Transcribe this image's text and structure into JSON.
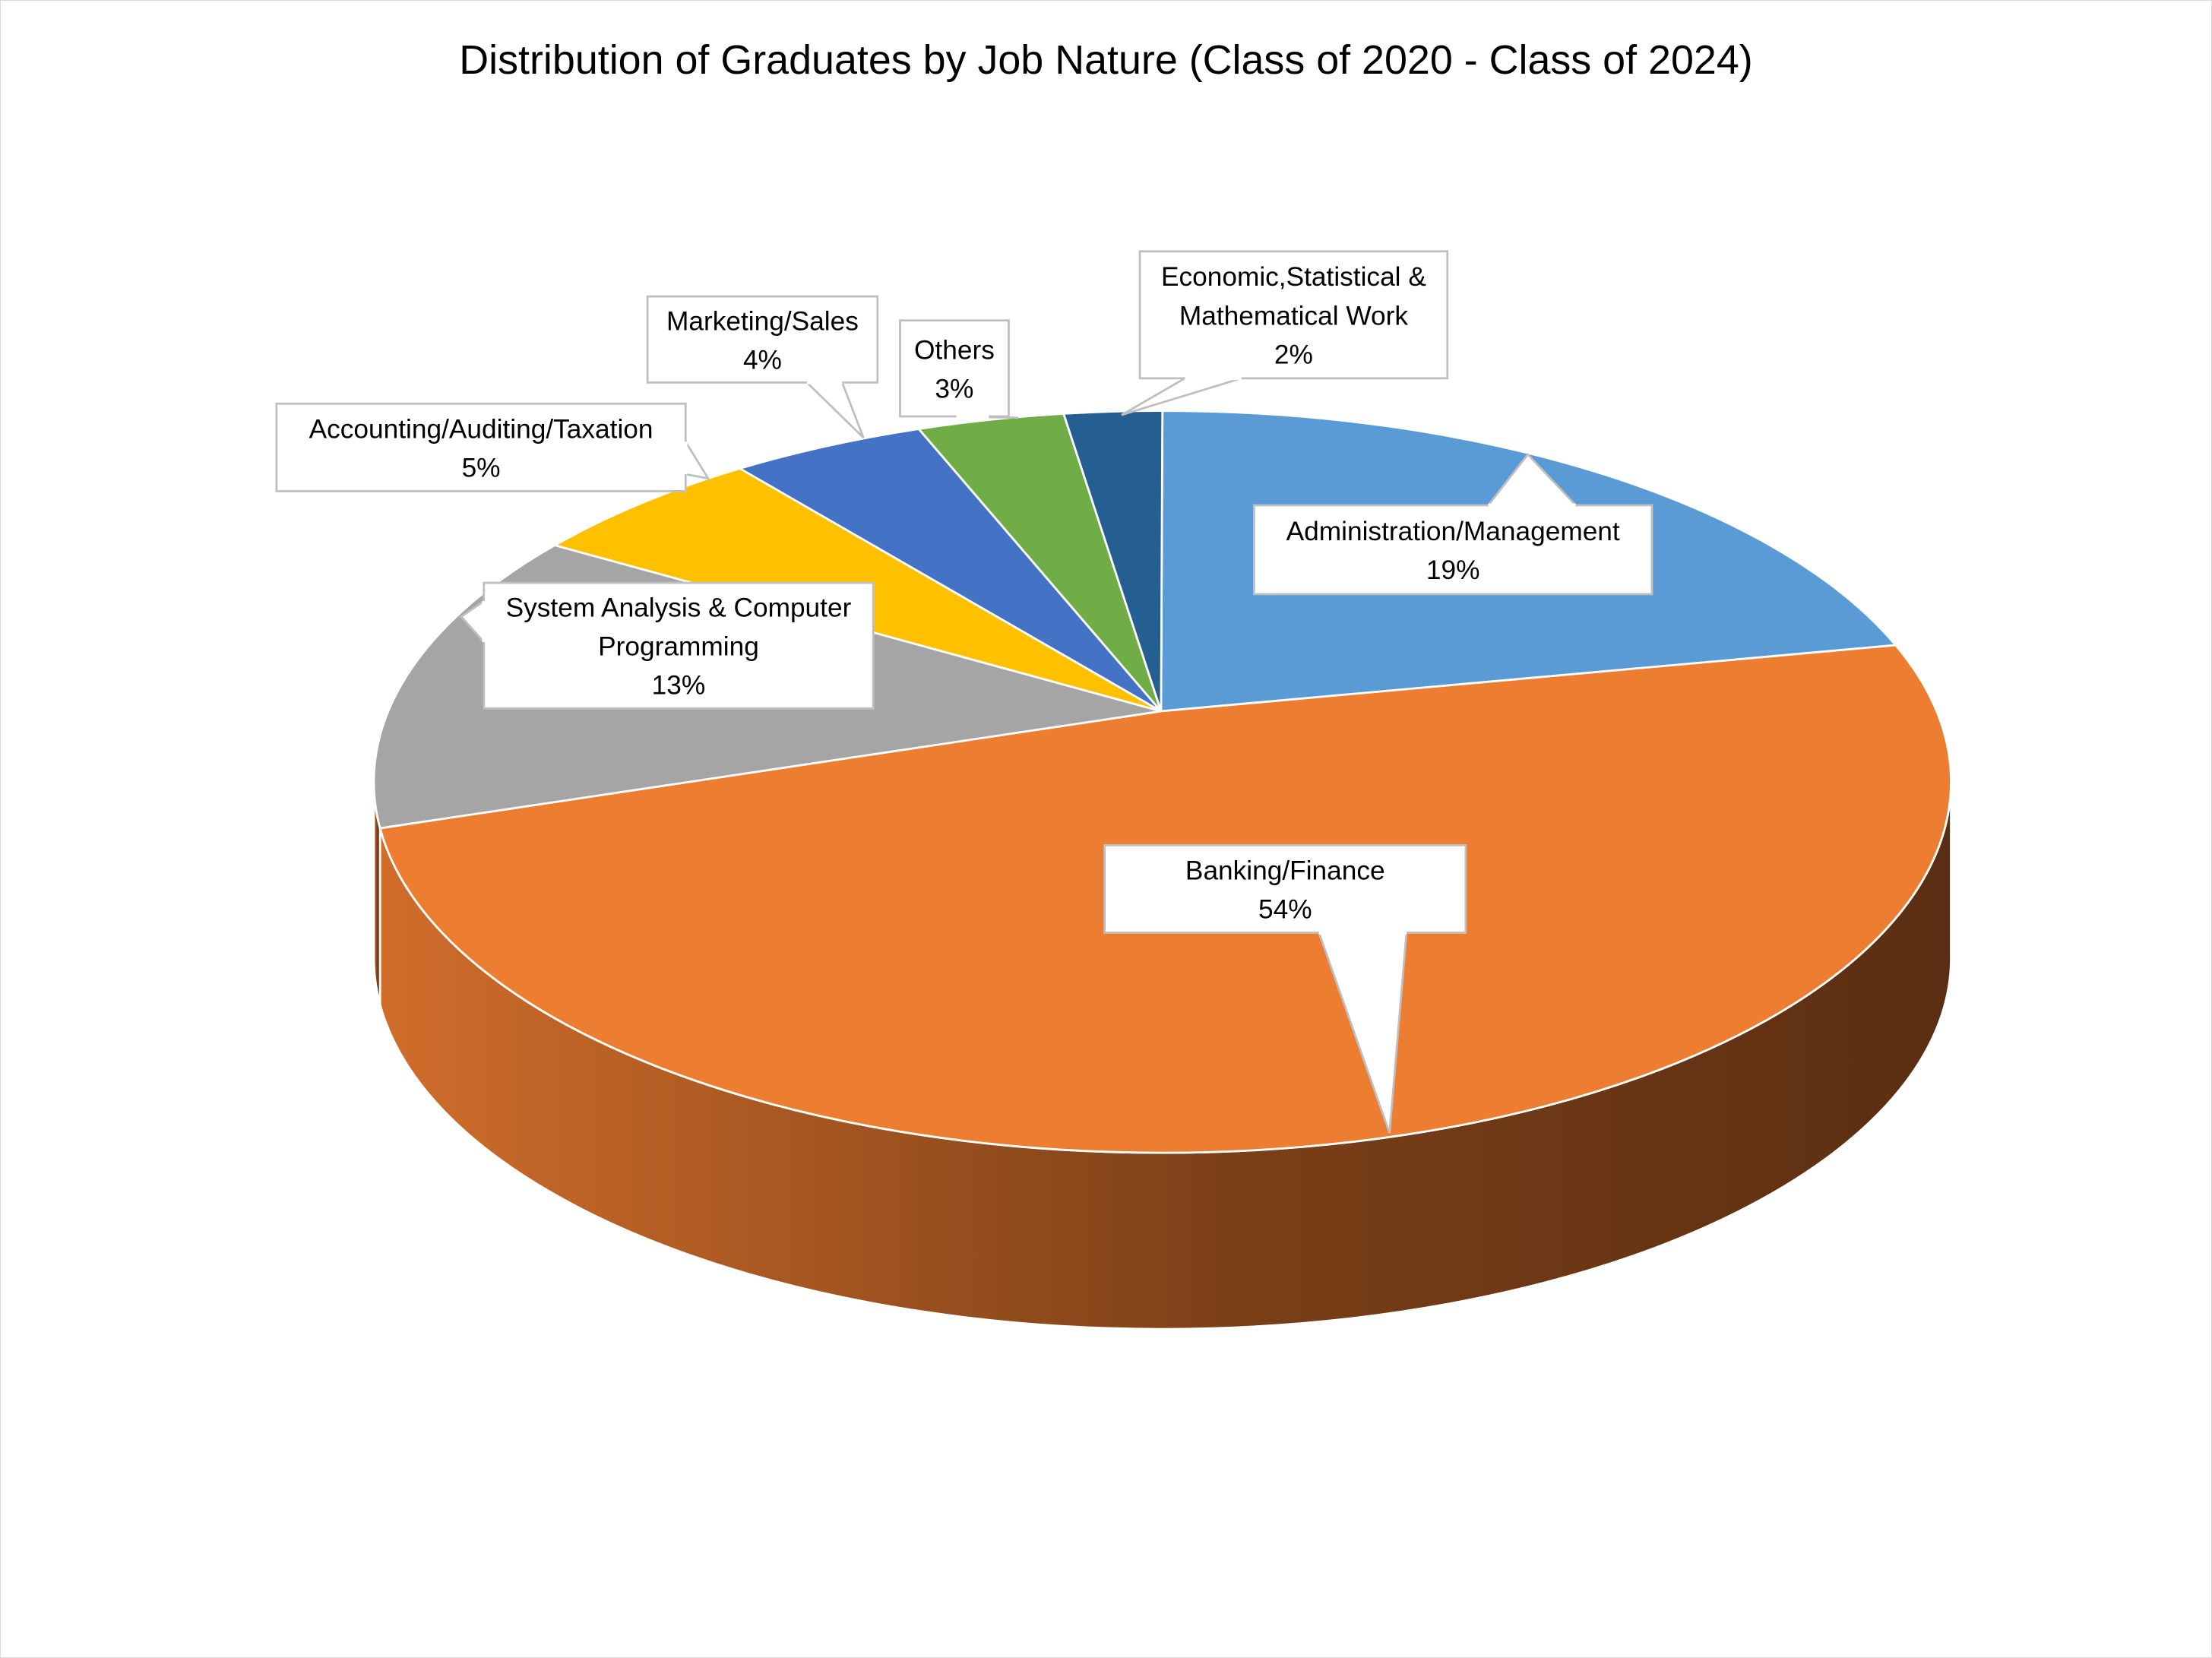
{
  "chart_data": {
    "type": "pie",
    "style": "3d",
    "title": "Distribution of Graduates by Job Nature (Class of 2020 - Class of 2024)",
    "legend": "none",
    "slices": [
      {
        "label": "Administration/Management",
        "value": 19,
        "display": "19%",
        "color": "#5b9bd5"
      },
      {
        "label": "Banking/Finance",
        "value": 54,
        "display": "54%",
        "color": "#ed7d31"
      },
      {
        "label": "System Analysis & Computer Programming",
        "value": 13,
        "display": "13%",
        "color": "#a5a5a5"
      },
      {
        "label": "Accounting/Auditing/Taxation",
        "value": 5,
        "display": "5%",
        "color": "#ffc000"
      },
      {
        "label": "Marketing/Sales",
        "value": 4,
        "display": "4%",
        "color": "#4472c4"
      },
      {
        "label": "Others",
        "value": 3,
        "display": "3%",
        "color": "#70ad47"
      },
      {
        "label": "Economic,Statistical & Mathematical Work",
        "value": 2,
        "display": "2%",
        "color": "#255e91"
      }
    ]
  }
}
